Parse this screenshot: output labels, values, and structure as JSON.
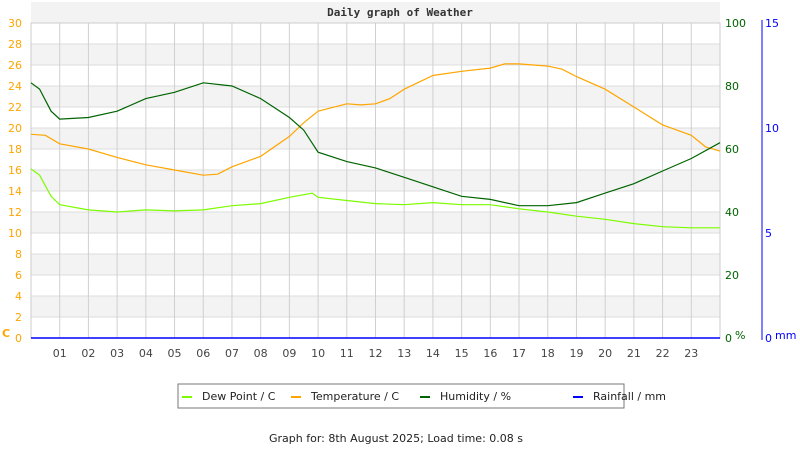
{
  "chart_data": {
    "type": "line",
    "title": "Daily graph of Weather",
    "footer": "Graph for: 8th August 2025; Load time: 0.08 s",
    "x_ticks": [
      "01",
      "02",
      "03",
      "04",
      "05",
      "06",
      "07",
      "08",
      "09",
      "10",
      "11",
      "12",
      "13",
      "14",
      "15",
      "16",
      "17",
      "18",
      "19",
      "20",
      "21",
      "22",
      "23"
    ],
    "xlim": [
      0,
      24
    ],
    "grid": true,
    "legend_position": "bottom",
    "axes": {
      "left": {
        "unit_label": "C",
        "ylim": [
          0,
          30
        ],
        "ticks": [
          "0",
          "2",
          "4",
          "6",
          "8",
          "10",
          "12",
          "14",
          "16",
          "18",
          "20",
          "22",
          "24",
          "26",
          "28",
          "30"
        ],
        "color": "#ffa500"
      },
      "right": {
        "unit_label": "%",
        "ylim": [
          0,
          100
        ],
        "ticks": [
          "0",
          "20",
          "40",
          "60",
          "80",
          "100"
        ],
        "color": "#006400"
      },
      "rain": {
        "unit_label": "mm",
        "ylim": [
          0,
          15
        ],
        "ticks": [
          "0",
          "5",
          "10",
          "15"
        ],
        "color": "#0000ff"
      }
    },
    "series": [
      {
        "name": "Dew Point / C",
        "axis": "left",
        "color": "#7cfc00",
        "x": [
          0,
          0.3,
          0.7,
          1,
          2,
          3,
          4,
          5,
          6,
          7,
          8,
          9,
          9.8,
          10,
          11,
          12,
          13,
          14,
          15,
          16,
          17,
          18,
          19,
          20,
          21,
          22,
          23,
          24
        ],
        "y": [
          16.1,
          15.5,
          13.5,
          12.7,
          12.2,
          12.0,
          12.2,
          12.1,
          12.2,
          12.6,
          12.8,
          13.4,
          13.8,
          13.4,
          13.1,
          12.8,
          12.7,
          12.9,
          12.7,
          12.7,
          12.3,
          12.0,
          11.6,
          11.3,
          10.9,
          10.6,
          10.5,
          10.5
        ]
      },
      {
        "name": "Temperature / C",
        "axis": "left",
        "color": "#ffa500",
        "x": [
          0,
          0.5,
          1,
          2,
          3,
          4,
          5,
          6,
          6.5,
          7,
          8,
          9,
          9.5,
          10,
          11,
          11.5,
          12,
          12.5,
          13,
          14,
          15,
          16,
          16.5,
          17,
          18,
          18.5,
          19,
          20,
          21,
          22,
          23,
          23.5,
          24
        ],
        "y": [
          19.4,
          19.3,
          18.5,
          18.0,
          17.2,
          16.5,
          16.0,
          15.5,
          15.6,
          16.3,
          17.3,
          19.2,
          20.5,
          21.6,
          22.3,
          22.2,
          22.3,
          22.8,
          23.7,
          25.0,
          25.4,
          25.7,
          26.1,
          26.1,
          25.9,
          25.6,
          24.9,
          23.7,
          22.0,
          20.3,
          19.3,
          18.2,
          17.8
        ]
      },
      {
        "name": "Humidity / %",
        "axis": "right",
        "color": "#006400",
        "x": [
          0,
          0.3,
          0.7,
          1,
          2,
          3,
          4,
          5,
          6,
          7,
          8,
          9,
          9.5,
          10,
          11,
          12,
          13,
          14,
          15,
          16,
          17,
          18,
          19,
          20,
          21,
          22,
          23,
          24
        ],
        "y": [
          81,
          79,
          72,
          69.5,
          70,
          72,
          76,
          78,
          81,
          80,
          76,
          70,
          66,
          59,
          56,
          54,
          51,
          48,
          45,
          44,
          42,
          42,
          43,
          46,
          49,
          53,
          57,
          62
        ]
      },
      {
        "name": "Rainfall / mm",
        "axis": "rain",
        "color": "#0000ff",
        "x": [
          0,
          24
        ],
        "y": [
          0,
          0
        ]
      }
    ]
  }
}
